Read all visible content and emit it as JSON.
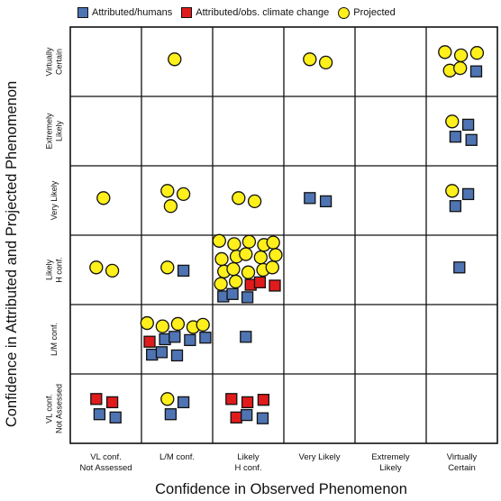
{
  "legend": [
    {
      "label": "Attributed/humans",
      "color": "#4f74b3",
      "shape": "square"
    },
    {
      "label": "Attributed/obs. climate change",
      "color": "#e01b1b",
      "shape": "square"
    },
    {
      "label": "Projected",
      "color": "#ffef1a",
      "shape": "circle"
    }
  ],
  "x_axis_title": "Confidence in Observed Phenomenon",
  "y_axis_title": "Confidence in Attributed and Projected Phenomenon",
  "x_ticks": [
    [
      "VL  conf.",
      "Not Assessed"
    ],
    [
      "L/M conf."
    ],
    [
      "Likely",
      "H conf."
    ],
    [
      "Very Likely"
    ],
    [
      "Extremely",
      "Likely"
    ],
    [
      "Virtually",
      "Certain"
    ]
  ],
  "y_ticks": [
    [
      "VL  conf.",
      "Not Assessed"
    ],
    [
      "L/M conf."
    ],
    [
      "Likely",
      "H conf."
    ],
    [
      "Very Likely"
    ],
    [
      "Extremely",
      "Likely"
    ],
    [
      "Virtually",
      "Certain"
    ]
  ],
  "cells": [
    {
      "col": 0,
      "row": 0,
      "blue": 2,
      "red": 2,
      "yellow": 0
    },
    {
      "col": 1,
      "row": 0,
      "blue": 2,
      "red": 0,
      "yellow": 1
    },
    {
      "col": 2,
      "row": 0,
      "blue": 2,
      "red": 4,
      "yellow": 0
    },
    {
      "col": 1,
      "row": 1,
      "blue": 7,
      "red": 1,
      "yellow": 5
    },
    {
      "col": 2,
      "row": 1,
      "blue": 1,
      "red": 0,
      "yellow": 0
    },
    {
      "col": 0,
      "row": 2,
      "blue": 0,
      "red": 0,
      "yellow": 2
    },
    {
      "col": 1,
      "row": 2,
      "blue": 1,
      "red": 0,
      "yellow": 1
    },
    {
      "col": 2,
      "row": 2,
      "blue": 3,
      "red": 3,
      "yellow": 17
    },
    {
      "col": 5,
      "row": 2,
      "blue": 1,
      "red": 0,
      "yellow": 0
    },
    {
      "col": 0,
      "row": 3,
      "blue": 0,
      "red": 0,
      "yellow": 1
    },
    {
      "col": 1,
      "row": 3,
      "blue": 0,
      "red": 0,
      "yellow": 3
    },
    {
      "col": 2,
      "row": 3,
      "blue": 0,
      "red": 0,
      "yellow": 2
    },
    {
      "col": 3,
      "row": 3,
      "blue": 2,
      "red": 0,
      "yellow": 0
    },
    {
      "col": 5,
      "row": 3,
      "blue": 2,
      "red": 0,
      "yellow": 1
    },
    {
      "col": 5,
      "row": 4,
      "blue": 3,
      "red": 0,
      "yellow": 1
    },
    {
      "col": 1,
      "row": 5,
      "blue": 0,
      "red": 0,
      "yellow": 1
    },
    {
      "col": 3,
      "row": 5,
      "blue": 0,
      "red": 0,
      "yellow": 2
    },
    {
      "col": 5,
      "row": 5,
      "blue": 1,
      "red": 0,
      "yellow": 5
    }
  ]
}
